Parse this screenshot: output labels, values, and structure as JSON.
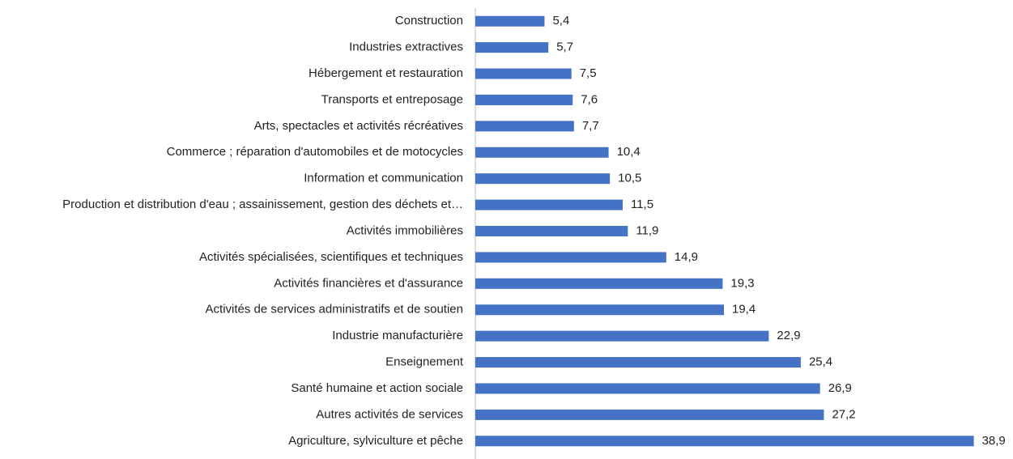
{
  "chart_data": {
    "type": "barh",
    "categories": [
      "Construction",
      "Industries extractives",
      "Hébergement et restauration",
      "Transports et entreposage",
      "Arts, spectacles et activités récréatives",
      "Commerce ; réparation d'automobiles et de motocycles",
      "Information et communication",
      "Production et distribution d'eau ; assainissement, gestion des déchets et…",
      "Activités immobilières",
      "Activités spécialisées, scientifiques et techniques",
      "Activités financières et d'assurance",
      "Activités de services administratifs et de soutien",
      "Industrie manufacturière",
      "Enseignement",
      "Santé humaine et action sociale",
      "Autres activités de services",
      "Agriculture, sylviculture et pêche"
    ],
    "values": [
      5.4,
      5.7,
      7.5,
      7.6,
      7.7,
      10.4,
      10.5,
      11.5,
      11.9,
      14.9,
      19.3,
      19.4,
      22.9,
      25.4,
      26.9,
      27.2,
      38.9
    ],
    "value_labels": [
      "5,4",
      "5,7",
      "7,5",
      "7,6",
      "7,7",
      "10,4",
      "10,5",
      "11,5",
      "11,9",
      "14,9",
      "19,3",
      "19,4",
      "22,9",
      "25,4",
      "26,9",
      "27,2",
      "38,9"
    ],
    "color": "#4472c4",
    "xlim": [
      0,
      40
    ]
  }
}
